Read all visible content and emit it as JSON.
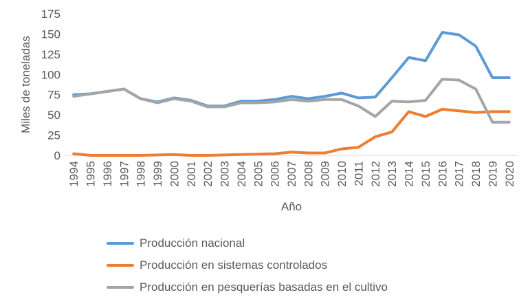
{
  "chart_data": {
    "type": "line",
    "title": "",
    "xlabel": "Año",
    "ylabel": "Miles de toneladas",
    "ylim": [
      0,
      175
    ],
    "yticks": [
      0,
      25,
      50,
      75,
      100,
      125,
      150,
      175
    ],
    "grid": false,
    "legend_position": "bottom",
    "x": [
      "1994",
      "1995",
      "1996",
      "1997",
      "1998",
      "1999",
      "2000",
      "2001",
      "2002",
      "2003",
      "2004",
      "2005",
      "2006",
      "2007",
      "2008",
      "2009",
      "2010",
      "2011",
      "2012",
      "2013",
      "2014",
      "2015",
      "2016",
      "2017",
      "2018",
      "2019",
      "2020"
    ],
    "series": [
      {
        "name": "Producción nacional",
        "color": "#5B9BD5",
        "values": [
          75,
          76,
          79,
          82,
          70,
          66,
          71,
          68,
          61,
          61,
          67,
          67,
          69,
          73,
          70,
          73,
          77,
          71,
          72,
          96,
          121,
          117,
          152,
          149,
          135,
          96,
          96
        ]
      },
      {
        "name": "Producción en sistemas controlados",
        "color": "#ED7D31",
        "values": [
          2,
          0,
          0,
          0,
          0,
          0.5,
          1,
          0,
          0,
          0.5,
          1,
          1.5,
          2,
          4,
          3,
          3,
          8,
          10,
          23,
          29,
          54,
          48,
          57,
          55,
          53,
          54,
          54
        ]
      },
      {
        "name": "Producción en pesquerías basadas en el cultivo",
        "color": "#A5A5A5",
        "values": [
          73,
          76,
          79,
          82,
          70,
          65,
          70,
          67,
          60,
          60,
          65,
          65,
          66,
          69,
          67,
          69,
          69,
          61,
          48,
          67,
          66,
          68,
          94,
          93,
          82,
          41,
          41
        ]
      }
    ]
  }
}
